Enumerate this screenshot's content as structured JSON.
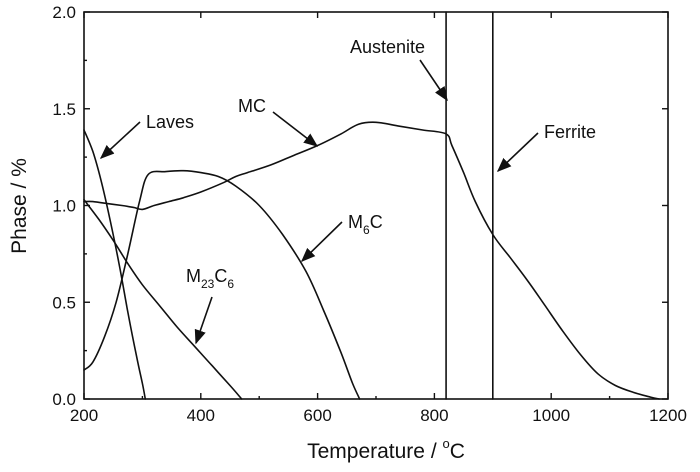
{
  "chart_data": {
    "type": "line",
    "xlabel_main": "Temperature / ",
    "xlabel_degree": "o",
    "xlabel_unit": "C",
    "ylabel": "Phase / %",
    "xlim": [
      200,
      1200
    ],
    "ylim": [
      0.0,
      2.0
    ],
    "xticks": [
      "200",
      "400",
      "600",
      "800",
      "1000",
      "1200"
    ],
    "yticks": [
      "0.0",
      "0.5",
      "1.0",
      "1.5",
      "2.0"
    ],
    "grid": false,
    "series": [
      {
        "id": "laves",
        "x": [
          200,
          215,
          230,
          245,
          260,
          275,
          290,
          300,
          305
        ],
        "y": [
          1.39,
          1.28,
          1.12,
          0.92,
          0.7,
          0.45,
          0.22,
          0.08,
          0.0
        ]
      },
      {
        "id": "mc",
        "x": [
          200,
          215,
          240,
          265,
          285,
          300,
          320,
          345,
          370,
          400,
          440,
          460,
          480,
          520,
          560,
          600,
          640,
          670,
          700,
          740,
          780,
          820,
          830,
          850,
          870,
          900,
          930,
          960,
          990,
          1020,
          1050,
          1080,
          1110,
          1140,
          1170,
          1185
        ],
        "y": [
          1.02,
          1.02,
          1.01,
          1.0,
          0.99,
          0.98,
          1.0,
          1.02,
          1.04,
          1.07,
          1.12,
          1.15,
          1.17,
          1.21,
          1.26,
          1.31,
          1.37,
          1.42,
          1.43,
          1.41,
          1.39,
          1.37,
          1.31,
          1.17,
          1.02,
          0.85,
          0.73,
          0.61,
          0.48,
          0.35,
          0.23,
          0.13,
          0.07,
          0.035,
          0.01,
          0.0
        ]
      },
      {
        "id": "m6c",
        "x": [
          200,
          215,
          235,
          255,
          275,
          295,
          310,
          340,
          370,
          400,
          430,
          460,
          500,
          540,
          580,
          610,
          640,
          660,
          672
        ],
        "y": [
          0.15,
          0.19,
          0.32,
          0.5,
          0.75,
          1.02,
          1.16,
          1.175,
          1.18,
          1.17,
          1.15,
          1.1,
          1.0,
          0.85,
          0.66,
          0.46,
          0.24,
          0.08,
          0.0
        ]
      },
      {
        "id": "m23c6",
        "x": [
          200,
          225,
          250,
          275,
          300,
          330,
          360,
          390,
          420,
          450,
          470
        ],
        "y": [
          1.03,
          0.93,
          0.82,
          0.7,
          0.59,
          0.48,
          0.37,
          0.27,
          0.17,
          0.07,
          0.0
        ]
      }
    ],
    "vertical_lines": [
      {
        "id": "austenite-line",
        "x": 820
      },
      {
        "id": "ferrite-line",
        "x": 900
      }
    ],
    "annotations": {
      "laves": "Laves",
      "mc": "MC",
      "m6c_main": "M",
      "m6c_sub": "6",
      "m6c_tail": "C",
      "m23c6_main": "M",
      "m23c6_sub": "23",
      "m23c6_mid": "C",
      "m23c6_sub2": "6",
      "austenite": "Austenite",
      "ferrite": "Ferrite"
    }
  }
}
